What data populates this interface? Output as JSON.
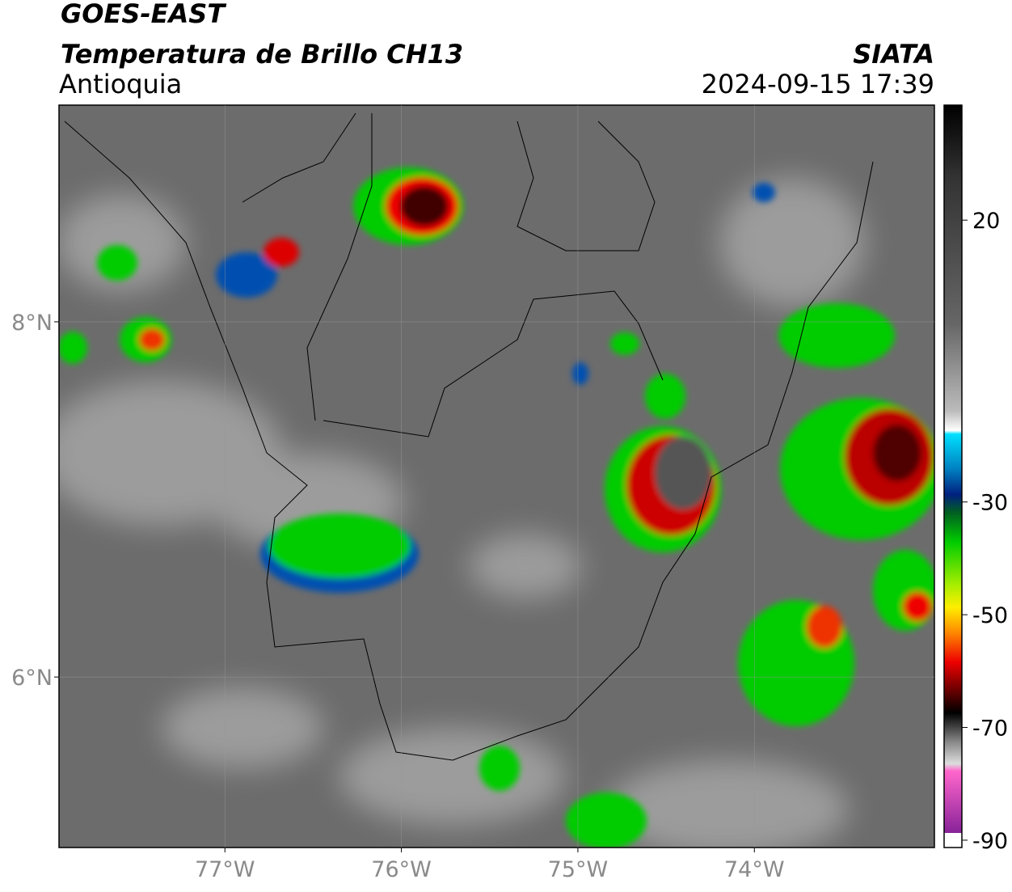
{
  "header": {
    "title": "GOES-EAST",
    "subtitle": "Temperatura de Brillo CH13",
    "region": "Antioquia",
    "source": "SIATA",
    "datetime": "2024-09-15 17:39"
  },
  "map": {
    "xlim": [
      -77.94,
      -72.98
    ],
    "ylim": [
      5.04,
      9.22
    ],
    "xticks": [
      {
        "value": -77,
        "label": "77°W"
      },
      {
        "value": -76,
        "label": "76°W"
      },
      {
        "value": -75,
        "label": "75°W"
      },
      {
        "value": -74,
        "label": "74°W"
      }
    ],
    "yticks": [
      {
        "value": 8,
        "label": "8°N"
      },
      {
        "value": 6,
        "label": "6°N"
      }
    ],
    "grid": true
  },
  "colorbar": {
    "lim": [
      -91.3,
      40.4
    ],
    "ticks": [
      20,
      -30,
      -50,
      -70,
      -90
    ]
  }
}
